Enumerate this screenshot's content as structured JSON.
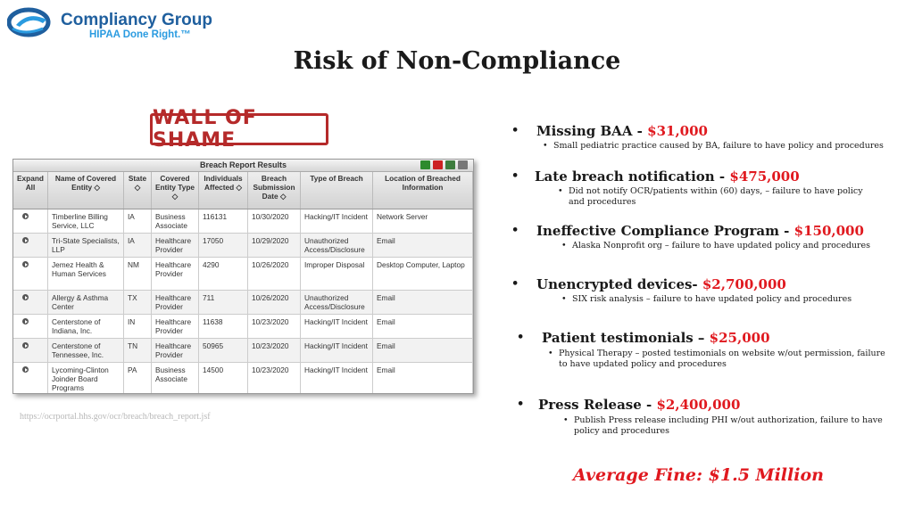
{
  "logo": {
    "name": "Compliancy Group",
    "tagline": "HIPAA Done Right.™"
  },
  "slide": {
    "title": "Risk of Non-Compliance"
  },
  "stamp": {
    "text": "WALL OF SHAME"
  },
  "breach_report": {
    "title": "Breach Report Results",
    "columns": [
      "Expand All",
      "Name of Covered Entity ◇",
      "State ◇",
      "Covered Entity Type ◇",
      "Individuals Affected ◇",
      "Breach Submission Date ◇",
      "Type of Breach",
      "Location of Breached Information"
    ],
    "rows": [
      [
        "Timberline Billing Service, LLC",
        "IA",
        "Business Associate",
        "116131",
        "10/30/2020",
        "Hacking/IT Incident",
        "Network Server"
      ],
      [
        "Tri-State Specialists, LLP",
        "IA",
        "Healthcare Provider",
        "17050",
        "10/29/2020",
        "Unauthorized Access/Disclosure",
        "Email"
      ],
      [
        "Jemez Health & Human Services",
        "NM",
        "Healthcare Provider",
        "4290",
        "10/26/2020",
        "Improper Disposal",
        "Desktop Computer, Laptop"
      ],
      [
        "Allergy & Asthma Center",
        "TX",
        "Healthcare Provider",
        "711",
        "10/26/2020",
        "Unauthorized Access/Disclosure",
        "Email"
      ],
      [
        "Centerstone of Indiana, Inc.",
        "IN",
        "Healthcare Provider",
        "11638",
        "10/23/2020",
        "Hacking/IT Incident",
        "Email"
      ],
      [
        "Centerstone of Tennessee, Inc.",
        "TN",
        "Healthcare Provider",
        "50965",
        "10/23/2020",
        "Hacking/IT Incident",
        "Email"
      ],
      [
        "Lycoming-Clinton Joinder Board Programs",
        "PA",
        "Business Associate",
        "14500",
        "10/23/2020",
        "Hacking/IT Incident",
        "Email"
      ]
    ]
  },
  "source_url": "https://ocrportal.hhs.gov/ocr/breach/breach_report.jsf",
  "risks": [
    {
      "label": "Missing BAA - ",
      "amount": "$31,000",
      "detail": "Small pediatric practice caused by BA, failure to have policy and procedures"
    },
    {
      "label": "Late breach notification - ",
      "amount": "$475,000",
      "detail": "Did not notify OCR/patients within (60) days, – failure to have policy and procedures"
    },
    {
      "label": "Ineffective Compliance Program - ",
      "amount": "$150,000",
      "detail": "Alaska Nonprofit org – failure to have updated policy and procedures"
    },
    {
      "label": "Unencrypted devices- ",
      "amount": "$2,700,000",
      "detail": "SIX risk analysis – failure to have updated policy and procedures"
    },
    {
      "label": "Patient testimonials – ",
      "amount": "$25,000",
      "detail": "Physical Therapy – posted testimonials on website w/out permission,  failure to have updated policy and procedures"
    },
    {
      "label": "Press Release - ",
      "amount": "$2,400,000",
      "detail": "Publish Press release including PHI w/out authorization, failure to have policy and procedures"
    }
  ],
  "average_fine": "Average Fine: $1.5 Million"
}
